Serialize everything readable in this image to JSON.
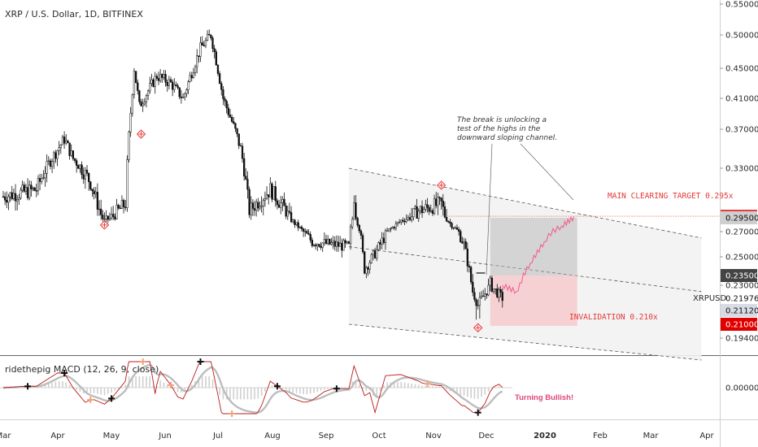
{
  "title": "XRP / U.S. Dollar, 1D, BITFINEX",
  "indicator_title": "ridethepig MACD (12, 26, 9, close)",
  "annotation": [
    "The break is unlocking a",
    "test of the highs in the",
    "downward sloping channel."
  ],
  "target_label": "MAIN CLEARING TARGET 0.295x",
  "invalidation_label": "INVALIDATION 0.210x",
  "macd_note": "Turning Bullish!",
  "symbol_label": "XRPUSD",
  "colors": {
    "up": "#2b2b2b",
    "down": "#1a1a1a",
    "target": "#e53935",
    "projection": "#f06292",
    "channel": "#f2f2f2"
  },
  "chart_data": {
    "type": "candlestick",
    "title": "XRP / U.S. Dollar, 1D, BITFINEX",
    "ylim": [
      0.175,
      0.56
    ],
    "y_ticks": [
      "0.55000",
      "0.50000",
      "0.45000",
      "0.41000",
      "0.37000",
      "0.33000",
      "0.27000",
      "0.25000",
      "0.23000",
      "0.19400"
    ],
    "x_ticks": [
      "Mar",
      "Apr",
      "May",
      "Jun",
      "Jul",
      "Aug",
      "Sep",
      "Oct",
      "Nov",
      "Dec",
      "2020",
      "Feb",
      "Mar",
      "Apr"
    ],
    "price_tags": [
      {
        "label": "0.29611",
        "value": 0.29611,
        "style": "red"
      },
      {
        "label": "0.29500",
        "value": 0.295,
        "style": "gray"
      },
      {
        "label": "0.23500",
        "value": 0.235,
        "style": "dark"
      },
      {
        "label": "0.21976",
        "value": 0.21976,
        "style": "plain"
      },
      {
        "label": "0.21120",
        "value": 0.2112,
        "style": "light"
      },
      {
        "label": "0.21000",
        "value": 0.21,
        "style": "red-solid"
      }
    ],
    "macd_ticks": [
      "0.00000"
    ],
    "price_path": [
      [
        "Mar 1",
        0.31
      ],
      [
        "Mar 20",
        0.315
      ],
      [
        "Apr 5",
        0.36
      ],
      [
        "Apr 10",
        0.34
      ],
      [
        "Apr 20",
        0.32
      ],
      [
        "Apr 28",
        0.29
      ],
      [
        "May 10",
        0.305
      ],
      [
        "May 15",
        0.45
      ],
      [
        "May 18",
        0.4
      ],
      [
        "May 28",
        0.44
      ],
      [
        "Jun 5",
        0.43
      ],
      [
        "Jun 12",
        0.41
      ],
      [
        "Jun 22",
        0.48
      ],
      [
        "Jun 28",
        0.5
      ],
      [
        "Jul 5",
        0.41
      ],
      [
        "Jul 15",
        0.35
      ],
      [
        "Jul 20",
        0.3
      ],
      [
        "Aug 1",
        0.315
      ],
      [
        "Aug 10",
        0.3
      ],
      [
        "Aug 20",
        0.27
      ],
      [
        "Aug 25",
        0.262
      ],
      [
        "Sep 5",
        0.26
      ],
      [
        "Sep 15",
        0.258
      ],
      [
        "Sep 18",
        0.31
      ],
      [
        "Sep 24",
        0.24
      ],
      [
        "Oct 1",
        0.255
      ],
      [
        "Oct 15",
        0.29
      ],
      [
        "Oct 25",
        0.3
      ],
      [
        "Nov 7",
        0.305
      ],
      [
        "Nov 12",
        0.285
      ],
      [
        "Nov 20",
        0.26
      ],
      [
        "Nov 25",
        0.225
      ],
      [
        "Nov 28",
        0.215
      ],
      [
        "Dec 5",
        0.23
      ],
      [
        "Dec 12",
        0.22
      ]
    ],
    "projection": [
      [
        "Dec 12",
        0.23
      ],
      [
        "Dec 20",
        0.225
      ],
      [
        "Dec 28",
        0.245
      ],
      [
        "Jan 5",
        0.262
      ],
      [
        "Jan 15",
        0.28
      ],
      [
        "Jan 22",
        0.296
      ]
    ],
    "channel": {
      "upper": [
        [
          "Sep 15",
          0.33
        ],
        [
          "Apr 5",
          0.265
        ]
      ],
      "mid": [
        [
          "Sep 15",
          0.258
        ],
        [
          "Apr 5",
          0.225
        ]
      ],
      "lower": [
        [
          "Sep 15",
          0.21
        ],
        [
          "Apr 5",
          0.172
        ]
      ]
    },
    "target": 0.295,
    "invalidation": 0.21,
    "entry": 0.235
  }
}
